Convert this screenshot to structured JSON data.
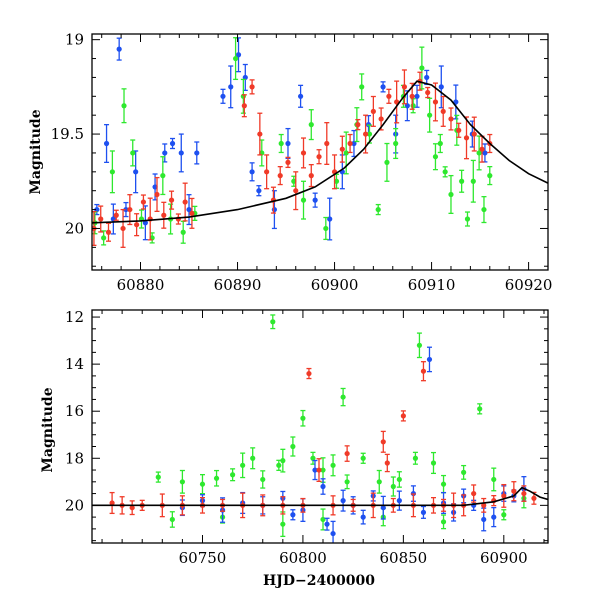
{
  "chart_data": [
    {
      "type": "scatter",
      "panel": "top",
      "title": "",
      "xlabel": "",
      "ylabel": "Magnitude",
      "xlim": [
        60875,
        60922
      ],
      "ylim": [
        20.22,
        18.97
      ],
      "y_inverted": true,
      "x_ticks": [
        60880,
        60890,
        60900,
        60910,
        60920
      ],
      "y_ticks": [
        19,
        19.5,
        20
      ],
      "grid": false,
      "legend": "none",
      "model_curve": {
        "color": "#000000",
        "points": [
          [
            60875,
            19.97
          ],
          [
            60880,
            19.96
          ],
          [
            60885,
            19.94
          ],
          [
            60890,
            19.9
          ],
          [
            60895,
            19.84
          ],
          [
            60898,
            19.78
          ],
          [
            60901,
            19.68
          ],
          [
            60903,
            19.58
          ],
          [
            60905,
            19.45
          ],
          [
            60907,
            19.31
          ],
          [
            60908.5,
            19.22
          ],
          [
            60910,
            19.24
          ],
          [
            60912,
            19.32
          ],
          [
            60914,
            19.45
          ],
          [
            60916,
            19.55
          ],
          [
            60918,
            19.64
          ],
          [
            60920,
            19.71
          ],
          [
            60922,
            19.76
          ]
        ]
      },
      "series": [
        {
          "color": "#1e50f0",
          "points": [
            [
              60875.5,
              19.9
            ],
            [
              60876.5,
              19.55
            ],
            [
              60877.2,
              19.95
            ],
            [
              60877.8,
              19.05
            ],
            [
              60878.5,
              19.9
            ],
            [
              60879.5,
              19.7
            ],
            [
              60880.5,
              19.97
            ],
            [
              60881.5,
              19.78
            ],
            [
              60882.5,
              19.6
            ],
            [
              60883.3,
              19.55
            ],
            [
              60884.2,
              19.6
            ],
            [
              60885,
              19.9
            ],
            [
              60885.8,
              19.6
            ],
            [
              60888.5,
              19.3
            ],
            [
              60889.3,
              19.25
            ],
            [
              60890.1,
              19.08
            ],
            [
              60890.8,
              19.2
            ],
            [
              60891.5,
              19.7
            ],
            [
              60892.2,
              19.8
            ],
            [
              60893.8,
              19.9
            ],
            [
              60895.2,
              19.55
            ],
            [
              60896.5,
              19.3
            ],
            [
              60898,
              19.85
            ],
            [
              60899.5,
              19.95
            ],
            [
              60900.8,
              19.7
            ],
            [
              60902,
              19.55
            ],
            [
              60903.5,
              19.45
            ],
            [
              60905,
              19.25
            ],
            [
              60906.3,
              19.5
            ],
            [
              60907.5,
              19.35
            ],
            [
              60908.5,
              19.3
            ],
            [
              60909.5,
              19.2
            ],
            [
              60911,
              19.25
            ],
            [
              60912.5,
              19.33
            ],
            [
              60914.2,
              19.5
            ],
            [
              60915.5,
              19.6
            ]
          ]
        },
        {
          "color": "#2ee82e",
          "points": [
            [
              60875.3,
              19.97
            ],
            [
              60876.2,
              20.05
            ],
            [
              60877.1,
              19.7
            ],
            [
              60878.3,
              19.35
            ],
            [
              60879.2,
              19.6
            ],
            [
              60880.1,
              19.95
            ],
            [
              60881.2,
              20.05
            ],
            [
              60882.3,
              19.72
            ],
            [
              60883.1,
              19.95
            ],
            [
              60884.4,
              20.02
            ],
            [
              60885.6,
              19.92
            ],
            [
              60889.8,
              19.1
            ],
            [
              60890.6,
              19.3
            ],
            [
              60892.5,
              19.6
            ],
            [
              60894.5,
              19.55
            ],
            [
              60895.8,
              19.75
            ],
            [
              60896.8,
              19.85
            ],
            [
              60897.6,
              19.45
            ],
            [
              60899.1,
              20.0
            ],
            [
              60900.2,
              19.75
            ],
            [
              60901.2,
              19.6
            ],
            [
              60902.3,
              19.45
            ],
            [
              60902.8,
              19.25
            ],
            [
              60903.6,
              19.5
            ],
            [
              60904.5,
              19.9
            ],
            [
              60905.4,
              19.65
            ],
            [
              60906.3,
              19.55
            ],
            [
              60907.1,
              19.3
            ],
            [
              60908.1,
              19.35
            ],
            [
              60909,
              19.15
            ],
            [
              60909.8,
              19.4
            ],
            [
              60910.4,
              19.62
            ],
            [
              60910.9,
              19.55
            ],
            [
              60911.4,
              19.7
            ],
            [
              60912,
              19.82
            ],
            [
              60912.6,
              19.48
            ],
            [
              60913.1,
              19.75
            ],
            [
              60913.7,
              19.95
            ],
            [
              60914.3,
              19.75
            ],
            [
              60914.9,
              19.6
            ],
            [
              60915.4,
              19.9
            ],
            [
              60916,
              19.72
            ]
          ]
        },
        {
          "color": "#f03a28",
          "points": [
            [
              60875.2,
              20.0
            ],
            [
              60875.9,
              19.95
            ],
            [
              60876.7,
              20.02
            ],
            [
              60877.5,
              19.93
            ],
            [
              60878.2,
              20.0
            ],
            [
              60878.9,
              19.9
            ],
            [
              60879.6,
              19.98
            ],
            [
              60880.3,
              19.86
            ],
            [
              60881,
              19.95
            ],
            [
              60881.7,
              19.82
            ],
            [
              60882.4,
              19.93
            ],
            [
              60883.2,
              19.85
            ],
            [
              60883.9,
              19.95
            ],
            [
              60884.6,
              19.86
            ],
            [
              60885.3,
              19.92
            ],
            [
              60890.7,
              19.35
            ],
            [
              60891.5,
              19.25
            ],
            [
              60892.3,
              19.5
            ],
            [
              60893,
              19.7
            ],
            [
              60893.7,
              19.85
            ],
            [
              60894.4,
              19.72
            ],
            [
              60895.2,
              19.65
            ],
            [
              60896,
              19.8
            ],
            [
              60896.8,
              19.6
            ],
            [
              60897.6,
              19.72
            ],
            [
              60898.4,
              19.62
            ],
            [
              60899.2,
              19.55
            ],
            [
              60900,
              19.7
            ],
            [
              60900.8,
              19.58
            ],
            [
              60901.6,
              19.55
            ],
            [
              60902.4,
              19.45
            ],
            [
              60903.2,
              19.5
            ],
            [
              60904,
              19.38
            ],
            [
              60904.8,
              19.42
            ],
            [
              60905.6,
              19.3
            ],
            [
              60906.4,
              19.33
            ],
            [
              60907.2,
              19.25
            ],
            [
              60908,
              19.3
            ],
            [
              60908.8,
              19.22
            ],
            [
              60909.6,
              19.28
            ],
            [
              60910.4,
              19.33
            ],
            [
              60911.2,
              19.38
            ],
            [
              60912,
              19.42
            ],
            [
              60912.8,
              19.48
            ],
            [
              60913.6,
              19.52
            ],
            [
              60914.4,
              19.5
            ],
            [
              60915.2,
              19.58
            ],
            [
              60916,
              19.55
            ]
          ]
        }
      ]
    },
    {
      "type": "scatter",
      "panel": "bottom",
      "title": "",
      "xlabel": "HJD−2400000",
      "ylabel": "Magnitude",
      "xlim": [
        60695,
        60922
      ],
      "ylim": [
        21.6,
        11.7
      ],
      "y_inverted": true,
      "x_ticks": [
        60750,
        60800,
        60850,
        60900
      ],
      "y_ticks": [
        12,
        14,
        16,
        18,
        20
      ],
      "grid": false,
      "legend": "none",
      "model_curve": {
        "color": "#000000",
        "points": [
          [
            60695,
            20.0
          ],
          [
            60880,
            20.0
          ],
          [
            60895,
            19.85
          ],
          [
            60905,
            19.6
          ],
          [
            60909,
            19.25
          ],
          [
            60913,
            19.4
          ],
          [
            60918,
            19.65
          ],
          [
            60922,
            19.75
          ]
        ]
      },
      "series": [
        {
          "color": "#2ee82e",
          "points": [
            [
              60728,
              18.8
            ],
            [
              60740,
              19.0
            ],
            [
              60750,
              19.1
            ],
            [
              60757,
              18.85
            ],
            [
              60765,
              18.7
            ],
            [
              60770,
              18.3
            ],
            [
              60775,
              18.0
            ],
            [
              60780,
              18.9
            ],
            [
              60785,
              12.2
            ],
            [
              60788,
              18.3
            ],
            [
              60790,
              18.1
            ],
            [
              60795,
              17.5
            ],
            [
              60800,
              16.3
            ],
            [
              60805,
              18.0
            ],
            [
              60810,
              18.5
            ],
            [
              60815,
              18.3
            ],
            [
              60820,
              15.4
            ],
            [
              60822,
              19.0
            ],
            [
              60830,
              18.0
            ],
            [
              60838,
              19.0
            ],
            [
              60845,
              19.2
            ],
            [
              60848,
              18.9
            ],
            [
              60856,
              18.0
            ],
            [
              60858,
              13.2
            ],
            [
              60865,
              18.2
            ],
            [
              60870,
              19.1
            ],
            [
              60880,
              18.6
            ],
            [
              60888,
              15.9
            ],
            [
              60895,
              18.9
            ],
            [
              60910,
              19.7
            ],
            [
              60735,
              20.6
            ],
            [
              60760,
              20.5
            ],
            [
              60790,
              20.8
            ],
            [
              60810,
              20.6
            ],
            [
              60840,
              20.5
            ],
            [
              60870,
              20.7
            ],
            [
              60900,
              20.4
            ]
          ]
        },
        {
          "color": "#1e50f0",
          "points": [
            [
              60740,
              20.1
            ],
            [
              60750,
              19.8
            ],
            [
              60760,
              20.2
            ],
            [
              60770,
              19.9
            ],
            [
              60780,
              20.0
            ],
            [
              60790,
              19.7
            ],
            [
              60795,
              20.4
            ],
            [
              60800,
              20.2
            ],
            [
              60806,
              18.5
            ],
            [
              60810,
              19.2
            ],
            [
              60812,
              20.8
            ],
            [
              60815,
              21.2
            ],
            [
              60820,
              19.8
            ],
            [
              60825,
              20.0
            ],
            [
              60830,
              20.5
            ],
            [
              60835,
              19.6
            ],
            [
              60840,
              20.1
            ],
            [
              60848,
              19.8
            ],
            [
              60855,
              19.5
            ],
            [
              60860,
              20.3
            ],
            [
              60863,
              13.8
            ],
            [
              60870,
              19.9
            ],
            [
              60875,
              20.3
            ],
            [
              60880,
              19.6
            ],
            [
              60885,
              20.0
            ],
            [
              60890,
              20.6
            ],
            [
              60895,
              20.5
            ],
            [
              60900,
              19.5
            ],
            [
              60905,
              19.6
            ],
            [
              60910,
              19.3
            ]
          ]
        },
        {
          "color": "#f03a28",
          "points": [
            [
              60705,
              19.9
            ],
            [
              60710,
              20.0
            ],
            [
              60715,
              20.1
            ],
            [
              60720,
              20.0
            ],
            [
              60730,
              20.0
            ],
            [
              60740,
              20.0
            ],
            [
              60750,
              20.0
            ],
            [
              60760,
              20.0
            ],
            [
              60770,
              20.0
            ],
            [
              60780,
              20.0
            ],
            [
              60790,
              20.0
            ],
            [
              60800,
              20.0
            ],
            [
              60803,
              14.4
            ],
            [
              60808,
              18.5
            ],
            [
              60815,
              20.0
            ],
            [
              60822,
              17.8
            ],
            [
              60825,
              20.0
            ],
            [
              60835,
              20.0
            ],
            [
              60840,
              17.3
            ],
            [
              60842,
              18.2
            ],
            [
              60845,
              20.0
            ],
            [
              60850,
              16.2
            ],
            [
              60855,
              20.0
            ],
            [
              60860,
              14.3
            ],
            [
              60865,
              20.0
            ],
            [
              60870,
              20.0
            ],
            [
              60875,
              20.0
            ],
            [
              60880,
              20.0
            ],
            [
              60885,
              19.5
            ],
            [
              60890,
              20.0
            ],
            [
              60895,
              19.8
            ],
            [
              60900,
              19.6
            ],
            [
              60905,
              19.4
            ],
            [
              60910,
              19.5
            ],
            [
              60915,
              19.7
            ]
          ]
        }
      ]
    }
  ]
}
